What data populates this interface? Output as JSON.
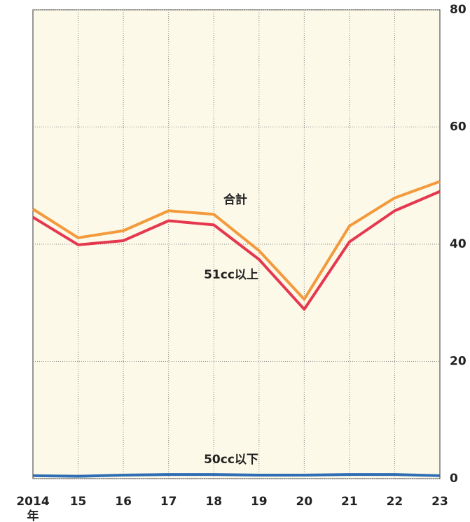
{
  "chart_data": {
    "type": "line",
    "x": [
      "2014",
      "15",
      "16",
      "17",
      "18",
      "19",
      "20",
      "21",
      "22",
      "23"
    ],
    "x_unit": "年",
    "series": [
      {
        "name": "合計",
        "color": "#f39a3c",
        "values": [
          46.0,
          41.1,
          42.3,
          45.7,
          45.1,
          38.9,
          30.6,
          43.1,
          47.9,
          50.7
        ]
      },
      {
        "name": "51cc以上",
        "color": "#e5384f",
        "values": [
          44.6,
          39.9,
          40.6,
          44.0,
          43.3,
          37.4,
          28.9,
          40.4,
          45.7,
          49.0
        ]
      },
      {
        "name": "50cc以下",
        "color": "#2f6db5",
        "values": [
          0.5,
          0.4,
          0.6,
          0.7,
          0.7,
          0.6,
          0.6,
          0.7,
          0.7,
          0.5
        ]
      }
    ],
    "ylim": [
      0,
      80
    ],
    "yticks": [
      0,
      20,
      40,
      60,
      80
    ],
    "grid": true
  }
}
